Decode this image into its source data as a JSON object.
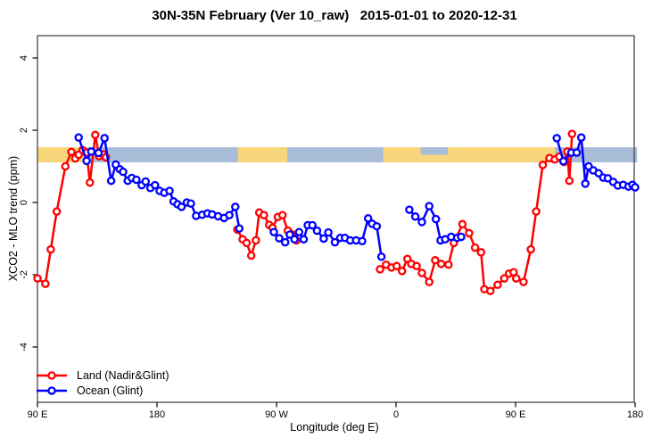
{
  "title": "30N-35N February (Ver 10_raw)   2015-01-01 to 2020-12-31",
  "legend": {
    "items": [
      {
        "label": "Land (Nadir&Glint)",
        "color": "#ff0000"
      },
      {
        "label": "Ocean (Glint)",
        "color": "#0000ff"
      }
    ]
  },
  "chart_data": {
    "type": "line",
    "marker": "open-circle",
    "title": "30N-35N February (Ver 10_raw)   2015-01-01 to 2020-12-31",
    "xlabel": "Longitude (deg E)",
    "ylabel": "XCO2 - MLO trend (ppm)",
    "x_axis": {
      "range": [
        90,
        540
      ],
      "ticks": [
        90,
        180,
        270,
        360,
        450,
        540
      ],
      "tick_labels": [
        "90 E",
        "180",
        "90 W",
        "0",
        "90 E",
        "180"
      ],
      "note": "longitude wraps eastward: 90E -> 180 -> 90W -> 0 -> 90E -> 180"
    },
    "y_axis": {
      "range": [
        -5.5,
        4.6
      ],
      "ticks": [
        4,
        2,
        0,
        -2,
        -4
      ],
      "tick_labels": [
        "4",
        "2",
        "0",
        "-2",
        "-4"
      ]
    },
    "grid": false,
    "legend_position": "bottom-left",
    "band": {
      "description": "land/ocean strip map of the 30N-35N latitude belt",
      "value_top": 1.53,
      "value_bottom": 1.11,
      "colors": {
        "land": "#f8d67c",
        "ocean": "#a9bdd8"
      },
      "segments": [
        {
          "type": "land",
          "from": 90,
          "to": 126.5
        },
        {
          "type": "ocean",
          "from": 126.5,
          "to": 241
        },
        {
          "type": "land",
          "from": 241,
          "to": 278
        },
        {
          "type": "ocean",
          "from": 278,
          "to": 350.5
        },
        {
          "type": "land",
          "from": 350.5,
          "to": 479.5
        },
        {
          "type": "ocean",
          "from": 479.5,
          "to": 541.5
        }
      ],
      "overlay_patches": [
        {
          "type": "ocean",
          "from": 378.5,
          "to": 399,
          "half": "top"
        }
      ]
    },
    "series": [
      {
        "name": "Land (Nadir&Glint)",
        "color": "#ff0000",
        "segments": [
          [
            [
              90,
              -2.1
            ],
            [
              96,
              -2.25
            ],
            [
              100,
              -1.3
            ],
            [
              104.5,
              -0.25
            ],
            [
              111,
              1.0
            ],
            [
              115.5,
              1.4
            ],
            [
              118.5,
              1.22
            ],
            [
              121,
              1.32
            ],
            [
              124,
              1.45
            ],
            [
              127,
              1.38
            ],
            [
              129.5,
              0.55
            ],
            [
              133.5,
              1.87
            ],
            [
              136.5,
              1.28
            ],
            [
              139.5,
              1.33
            ],
            [
              141.5,
              1.25
            ]
          ],
          [
            [
              240.5,
              -0.75
            ],
            [
              244.5,
              -1.02
            ],
            [
              247.5,
              -1.12
            ],
            [
              251,
              -1.47
            ],
            [
              254.5,
              -1.05
            ],
            [
              257,
              -0.28
            ],
            [
              260.5,
              -0.35
            ],
            [
              264.5,
              -0.62
            ],
            [
              267,
              -0.7
            ],
            [
              271,
              -0.4
            ],
            [
              274.5,
              -0.35
            ],
            [
              278.5,
              -0.78
            ],
            [
              281.5,
              -0.88
            ],
            [
              285,
              -1.05
            ]
          ],
          [
            [
              348,
              -1.85
            ],
            [
              352.5,
              -1.72
            ],
            [
              356.5,
              -1.8
            ],
            [
              360.5,
              -1.76
            ],
            [
              364.5,
              -1.9
            ],
            [
              368.5,
              -1.56
            ],
            [
              371.5,
              -1.7
            ],
            [
              375.5,
              -1.76
            ],
            [
              379.5,
              -1.95
            ],
            [
              385,
              -2.2
            ],
            [
              389.5,
              -1.6
            ],
            [
              394,
              -1.7
            ],
            [
              399.5,
              -1.72
            ],
            [
              403.5,
              -1.12
            ],
            [
              410,
              -0.6
            ],
            [
              415,
              -0.85
            ],
            [
              419.5,
              -1.25
            ],
            [
              424,
              -1.38
            ],
            [
              426.5,
              -2.4
            ],
            [
              431,
              -2.45
            ],
            [
              436.5,
              -2.28
            ],
            [
              441.5,
              -2.1
            ],
            [
              445,
              -1.97
            ],
            [
              448.5,
              -1.93
            ],
            [
              450.5,
              -2.1
            ],
            [
              456,
              -2.2
            ],
            [
              461.5,
              -1.3
            ],
            [
              465.5,
              -0.25
            ],
            [
              470.5,
              1.04
            ],
            [
              475.5,
              1.23
            ],
            [
              479.5,
              1.19
            ],
            [
              483,
              1.27
            ],
            [
              486.5,
              1.12
            ],
            [
              489,
              1.41
            ],
            [
              490.5,
              0.6
            ],
            [
              492.5,
              1.9
            ]
          ]
        ]
      },
      {
        "name": "Ocean (Glint)",
        "color": "#0000ff",
        "segments": [
          [
            [
              121,
              1.8
            ],
            [
              127,
              1.15
            ],
            [
              130.5,
              1.41
            ],
            [
              136,
              1.37
            ],
            [
              140.5,
              1.78
            ],
            [
              145.5,
              0.6
            ],
            [
              149,
              1.05
            ],
            [
              152,
              0.92
            ],
            [
              154.5,
              0.85
            ],
            [
              158,
              0.6
            ],
            [
              161,
              0.68
            ],
            [
              164.5,
              0.63
            ],
            [
              168.5,
              0.48
            ],
            [
              171.5,
              0.58
            ],
            [
              175,
              0.4
            ],
            [
              178.5,
              0.48
            ],
            [
              182,
              0.32
            ],
            [
              185.5,
              0.27
            ],
            [
              189.5,
              0.32
            ],
            [
              192.5,
              0.03
            ],
            [
              195.5,
              -0.05
            ],
            [
              198.5,
              -0.12
            ],
            [
              202.5,
              0.0
            ],
            [
              205.5,
              -0.03
            ],
            [
              209.5,
              -0.37
            ],
            [
              214,
              -0.34
            ],
            [
              218,
              -0.3
            ],
            [
              221.5,
              -0.33
            ],
            [
              226,
              -0.38
            ],
            [
              230.5,
              -0.43
            ],
            [
              234.5,
              -0.35
            ],
            [
              239,
              -0.12
            ],
            [
              242,
              -0.72
            ]
          ],
          [
            [
              268,
              -0.82
            ],
            [
              272,
              -0.99
            ],
            [
              276.5,
              -1.1
            ],
            [
              280,
              -0.89
            ],
            [
              283.5,
              -1.02
            ],
            [
              287,
              -0.82
            ],
            [
              290.5,
              -1.02
            ],
            [
              293.5,
              -0.63
            ],
            [
              297,
              -0.63
            ],
            [
              300.5,
              -0.78
            ],
            [
              305.5,
              -1.0
            ],
            [
              309,
              -0.83
            ],
            [
              314,
              -1.1
            ],
            [
              318,
              -0.98
            ],
            [
              321.5,
              -0.98
            ],
            [
              325.5,
              -1.05
            ],
            [
              330,
              -1.05
            ],
            [
              334.5,
              -1.07
            ],
            [
              339,
              -0.44
            ],
            [
              342,
              -0.59
            ],
            [
              345.5,
              -0.66
            ],
            [
              349,
              -1.5
            ]
          ],
          [
            [
              370,
              -0.2
            ],
            [
              374.5,
              -0.39
            ],
            [
              379.5,
              -0.54
            ],
            [
              385,
              -0.1
            ],
            [
              390,
              -0.46
            ],
            [
              393.5,
              -1.05
            ],
            [
              397,
              -1.02
            ],
            [
              401.5,
              -0.95
            ],
            [
              406,
              -0.98
            ],
            [
              409,
              -0.95
            ]
          ],
          [
            [
              481,
              1.78
            ],
            [
              486,
              1.14
            ],
            [
              492,
              1.38
            ],
            [
              496,
              1.38
            ],
            [
              499.5,
              1.8
            ],
            [
              502.5,
              0.52
            ],
            [
              505,
              1.0
            ],
            [
              508.5,
              0.89
            ],
            [
              512.5,
              0.81
            ],
            [
              516,
              0.69
            ],
            [
              519.5,
              0.67
            ],
            [
              523.5,
              0.57
            ],
            [
              527,
              0.47
            ],
            [
              531,
              0.49
            ],
            [
              535,
              0.44
            ],
            [
              538,
              0.49
            ],
            [
              540,
              0.42
            ]
          ]
        ]
      }
    ]
  },
  "style": {
    "axis_color": "#3a3a3a",
    "tick_color": "#000000",
    "marker_fill": "#ffffff",
    "line_width": 2.5,
    "marker_radius": 3.6,
    "marker_stroke": 2.3
  }
}
